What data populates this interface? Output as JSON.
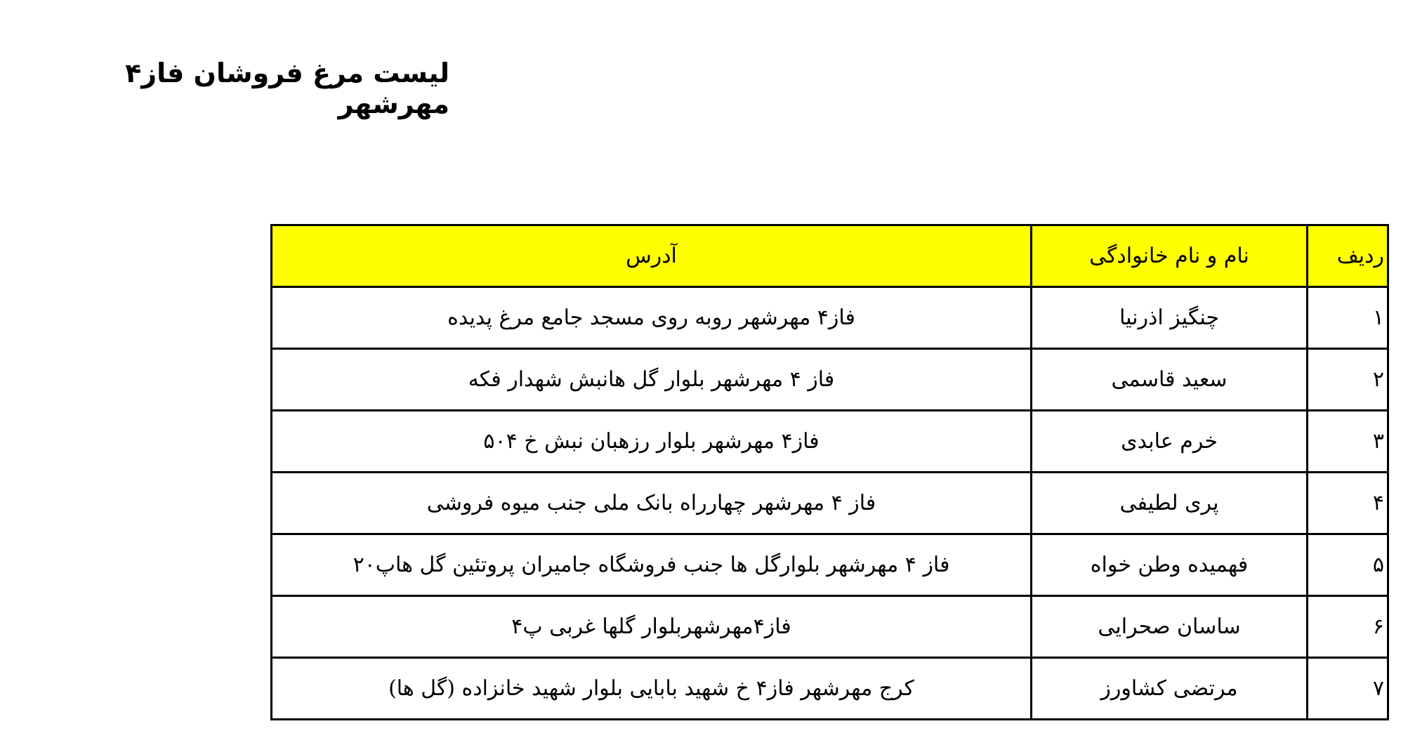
{
  "title": "لیست مرغ فروشان فاز۴ مهرشهر",
  "table": {
    "header_color": "#ffff00",
    "headers": [
      "ردیف",
      "نام و نام خانوادگی",
      "آدرس"
    ],
    "rows": [
      {
        "num": "۱",
        "name": "چنگیز اذرنیا",
        "address": "فاز۴ مهرشهر روبه روی مسجد جامع مرغ پدیده"
      },
      {
        "num": "۲",
        "name": "سعید قاسمی",
        "address": "فاز ۴ مهرشهر بلوار گل هانبش شهدار فکه"
      },
      {
        "num": "۳",
        "name": "خرم عابدی",
        "address": "فاز۴ مهرشهر بلوار رزهبان نبش خ ۵۰۴"
      },
      {
        "num": "۴",
        "name": "پری لطیفی",
        "address": "فاز ۴ مهرشهر چهارراه بانک ملی جنب میوه فروشی"
      },
      {
        "num": "۵",
        "name": "فهمیده وطن خواه",
        "address": "فاز ۴ مهرشهر بلوارگل ها جنب فروشگاه جامیران پروتئین گل هاپ۲۰"
      },
      {
        "num": "۶",
        "name": "ساسان صحرایی",
        "address": "فاز۴مهرشهربلوار گلها غربی پ۴"
      },
      {
        "num": "۷",
        "name": "مرتضی کشاورز",
        "address": "کرج مهرشهر فاز۴ خ شهید بابایی بلوار شهید خانزاده (گل ها)"
      }
    ]
  }
}
